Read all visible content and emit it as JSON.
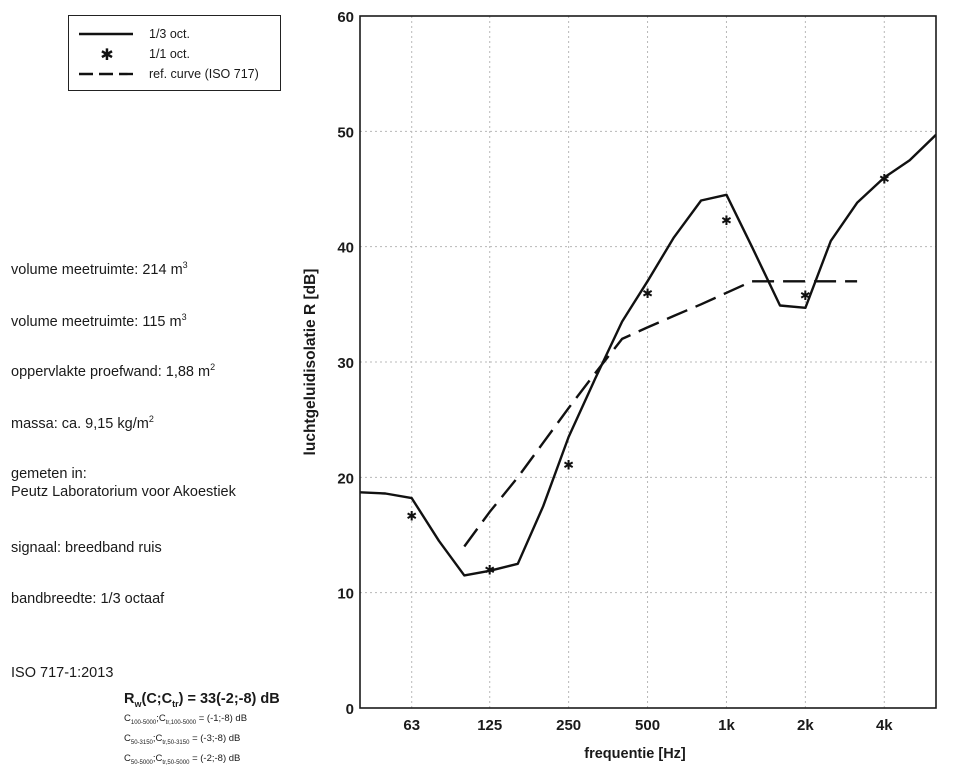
{
  "legend": {
    "items": [
      {
        "label": "1/3 oct.",
        "style": "solid"
      },
      {
        "label": "1/1 oct.",
        "style": "star"
      },
      {
        "label": "ref. curve (ISO 717)",
        "style": "dashed"
      }
    ]
  },
  "info": {
    "volume_1": {
      "text": "volume meetruimte: 214 m",
      "sup": "3"
    },
    "volume_2": {
      "text": "volume meetruimte: 115 m",
      "sup": "3"
    },
    "area": {
      "text": "oppervlakte proefwand: 1,88 m",
      "sup": "2"
    },
    "mass": {
      "text": "massa: ca. 9,15 kg/m",
      "sup": "2"
    },
    "measured_in_label": "gemeten in:",
    "lab": "Peutz Laboratorium voor Akoestiek",
    "signal": "signaal: breedband ruis",
    "bandwidth": "bandbreedte: 1/3 octaaf",
    "standard": "ISO 717-1:2013"
  },
  "rating": {
    "rw_prefix": "R",
    "rw_sub": "w",
    "c_open": "(C;C",
    "ctr_sub": "tr",
    "rw_value": ") = 33(-2;-8) dB",
    "lines": [
      {
        "c": "C",
        "c_sub": "100-5000",
        "sep": ";C",
        "ctr_sub": "tr,100-5000",
        "val": " = (-1;-8) dB"
      },
      {
        "c": "C",
        "c_sub": "50-3150",
        "sep": ";C",
        "ctr_sub": "tr,50-3150",
        "val": " = (-3;-8) dB"
      },
      {
        "c": "C",
        "c_sub": "50-5000",
        "sep": ";C",
        "ctr_sub": "tr,50-5000",
        "val": " = (-2;-8) dB"
      }
    ]
  },
  "chart_data": {
    "type": "line",
    "xlabel": "frequentie [Hz]",
    "ylabel": "luchtgeluidisolatie R [dB]",
    "ylim": [
      0,
      60
    ],
    "yticks": [
      0,
      10,
      20,
      30,
      40,
      50,
      60
    ],
    "xscale": "log",
    "xticks": [
      {
        "freq": 63,
        "label": "63"
      },
      {
        "freq": 125,
        "label": "125"
      },
      {
        "freq": 250,
        "label": "250"
      },
      {
        "freq": 500,
        "label": "500"
      },
      {
        "freq": 1000,
        "label": "1k"
      },
      {
        "freq": 2000,
        "label": "2k"
      },
      {
        "freq": 4000,
        "label": "4k"
      }
    ],
    "xlim": [
      40,
      6300
    ],
    "grid": true,
    "legend_position": "top-left",
    "series": [
      {
        "name": "1/3 oct.",
        "style": "solid",
        "x": [
          40,
          50,
          63,
          80,
          100,
          125,
          160,
          200,
          250,
          315,
          400,
          500,
          630,
          800,
          1000,
          1250,
          1600,
          2000,
          2500,
          3150,
          4000,
          5000,
          6300
        ],
        "y": [
          18.7,
          18.6,
          18.2,
          14.5,
          11.5,
          11.9,
          12.5,
          17.5,
          23.5,
          28.5,
          33.5,
          37.0,
          40.8,
          44.0,
          44.5,
          40.0,
          34.9,
          34.7,
          40.5,
          43.8,
          46.0,
          47.5,
          49.7
        ]
      },
      {
        "name": "1/1 oct.",
        "style": "star",
        "x": [
          63,
          125,
          250,
          500,
          1000,
          2000,
          4000
        ],
        "y": [
          16.7,
          12.0,
          21.1,
          36.0,
          42.3,
          35.8,
          45.9
        ]
      },
      {
        "name": "ref. curve (ISO 717)",
        "style": "dashed",
        "x": [
          100,
          125,
          160,
          200,
          250,
          315,
          400,
          500,
          630,
          800,
          1000,
          1250,
          1600,
          2000,
          2500,
          3150
        ],
        "y": [
          14,
          17,
          20,
          23,
          26,
          29,
          32,
          33,
          34,
          35,
          36,
          37,
          37,
          37,
          37,
          37
        ]
      }
    ]
  }
}
